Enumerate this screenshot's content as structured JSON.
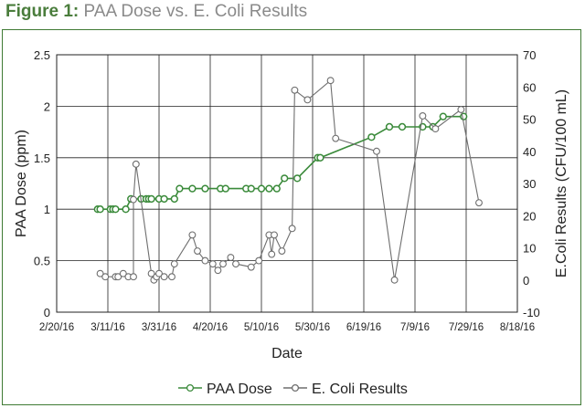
{
  "figure": {
    "label": "Figure 1:",
    "title": "PAA Dose vs. E. Coli Results"
  },
  "colors": {
    "paa": "#3a8a3a",
    "ecoli": "#6e6e6e",
    "frame": "#3f7a34",
    "grid": "#222222"
  },
  "chart_data": {
    "type": "line",
    "title": "PAA Dose vs. E. Coli Results",
    "xlabel": "Date",
    "ylabel": "PAA Dose (ppm)",
    "y2label": "E.Coli Results (CFU/100 mL)",
    "x_ticks": [
      "2/20/16",
      "3/11/16",
      "3/31/16",
      "4/20/16",
      "5/10/16",
      "5/30/16",
      "6/19/16",
      "7/9/16",
      "7/29/16",
      "8/18/16"
    ],
    "xlim": [
      "2016-02-20",
      "2016-08-18"
    ],
    "ylim": [
      0,
      2.5
    ],
    "y_ticks": [
      "0",
      "0.5",
      "1",
      "1.5",
      "2",
      "2.5"
    ],
    "y2lim": [
      -10,
      70
    ],
    "y2_ticks": [
      "-10",
      "0",
      "10",
      "20",
      "30",
      "40",
      "50",
      "60",
      "70"
    ],
    "grid": true,
    "legend_position": "bottom",
    "series": [
      {
        "name": "PAA Dose",
        "axis": "left",
        "marker": "filled-circle",
        "points": [
          [
            "2016-03-07",
            1.0
          ],
          [
            "2016-03-08",
            1.0
          ],
          [
            "2016-03-12",
            1.0
          ],
          [
            "2016-03-13",
            1.0
          ],
          [
            "2016-03-14",
            1.0
          ],
          [
            "2016-03-18",
            1.0
          ],
          [
            "2016-03-20",
            1.1
          ],
          [
            "2016-03-24",
            1.1
          ],
          [
            "2016-03-26",
            1.1
          ],
          [
            "2016-03-27",
            1.1
          ],
          [
            "2016-03-28",
            1.1
          ],
          [
            "2016-03-31",
            1.1
          ],
          [
            "2016-04-02",
            1.1
          ],
          [
            "2016-04-06",
            1.1
          ],
          [
            "2016-04-08",
            1.2
          ],
          [
            "2016-04-13",
            1.2
          ],
          [
            "2016-04-18",
            1.2
          ],
          [
            "2016-04-24",
            1.2
          ],
          [
            "2016-04-26",
            1.2
          ],
          [
            "2016-05-04",
            1.2
          ],
          [
            "2016-05-06",
            1.2
          ],
          [
            "2016-05-10",
            1.2
          ],
          [
            "2016-05-13",
            1.2
          ],
          [
            "2016-05-16",
            1.2
          ],
          [
            "2016-05-19",
            1.3
          ],
          [
            "2016-05-24",
            1.3
          ],
          [
            "2016-06-01",
            1.5
          ],
          [
            "2016-06-02",
            1.5
          ],
          [
            "2016-06-22",
            1.7
          ],
          [
            "2016-06-29",
            1.8
          ],
          [
            "2016-07-04",
            1.8
          ],
          [
            "2016-07-12",
            1.8
          ],
          [
            "2016-07-16",
            1.8
          ],
          [
            "2016-07-20",
            1.9
          ],
          [
            "2016-07-28",
            1.9
          ]
        ]
      },
      {
        "name": "E. Coli Results",
        "axis": "right",
        "marker": "open-circle",
        "points": [
          [
            "2016-03-08",
            2
          ],
          [
            "2016-03-10",
            1
          ],
          [
            "2016-03-14",
            1
          ],
          [
            "2016-03-15",
            1
          ],
          [
            "2016-03-17",
            2
          ],
          [
            "2016-03-19",
            1
          ],
          [
            "2016-03-21",
            1
          ],
          [
            "2016-03-21",
            25
          ],
          [
            "2016-03-22",
            36
          ],
          [
            "2016-03-28",
            2
          ],
          [
            "2016-03-29",
            0
          ],
          [
            "2016-03-30",
            1
          ],
          [
            "2016-03-31",
            2
          ],
          [
            "2016-04-02",
            1
          ],
          [
            "2016-04-05",
            1
          ],
          [
            "2016-04-06",
            5
          ],
          [
            "2016-04-13",
            14
          ],
          [
            "2016-04-15",
            9
          ],
          [
            "2016-04-18",
            6
          ],
          [
            "2016-04-21",
            5
          ],
          [
            "2016-04-23",
            3
          ],
          [
            "2016-04-25",
            5
          ],
          [
            "2016-04-28",
            7
          ],
          [
            "2016-04-30",
            5
          ],
          [
            "2016-05-06",
            4
          ],
          [
            "2016-05-09",
            6
          ],
          [
            "2016-05-13",
            14
          ],
          [
            "2016-05-14",
            8
          ],
          [
            "2016-05-15",
            14
          ],
          [
            "2016-05-18",
            9
          ],
          [
            "2016-05-22",
            16
          ],
          [
            "2016-05-23",
            59
          ],
          [
            "2016-05-28",
            56
          ],
          [
            "2016-06-06",
            62
          ],
          [
            "2016-06-08",
            44
          ],
          [
            "2016-06-24",
            40
          ],
          [
            "2016-07-01",
            0
          ],
          [
            "2016-07-12",
            51
          ],
          [
            "2016-07-17",
            47
          ],
          [
            "2016-07-27",
            53
          ],
          [
            "2016-08-03",
            24
          ]
        ]
      }
    ]
  }
}
